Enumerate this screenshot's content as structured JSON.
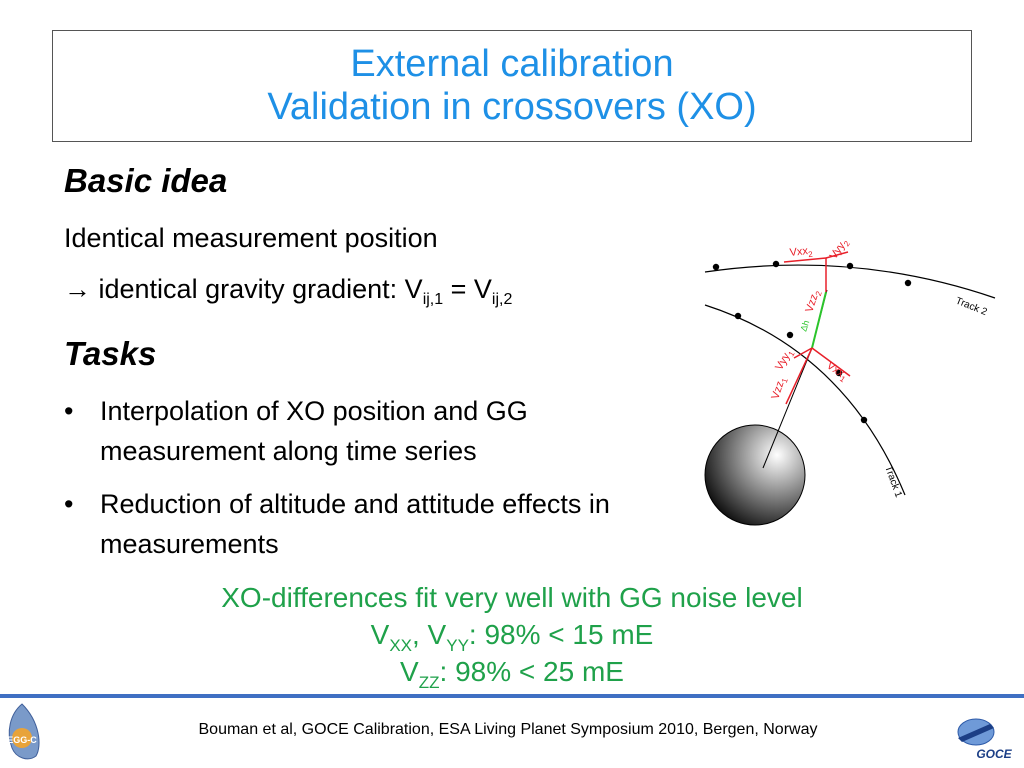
{
  "title": {
    "line1": "External calibration",
    "line2": "Validation in crossovers (XO)"
  },
  "basic": {
    "heading": "Basic idea",
    "line1": "Identical measurement position",
    "line2_prefix": "→ identical gravity gradient: V",
    "sub1": "ij,1",
    "eq": " = V",
    "sub2": "ij,2"
  },
  "tasks": {
    "heading": "Tasks",
    "bullet_char": "•",
    "items": [
      "Interpolation of XO position and GG measurement along time series",
      "Reduction of altitude and attitude effects in  measurements"
    ]
  },
  "result": {
    "line1": "XO-differences fit very well with GG noise level",
    "l2_v1": "V",
    "l2_sub1": "XX",
    "l2_mid": ", V",
    "l2_sub2": "YY",
    "l2_tail": ": 98% < 15 mE",
    "l3_v": "V",
    "l3_sub": "ZZ",
    "l3_tail": ": 98% < 25 mE"
  },
  "diagram": {
    "track1": "Track 1",
    "track2": "Track 2",
    "vxx2": "Vxx",
    "vxx2_sub": "2",
    "vyy2": "Vyy",
    "vyy2_sub": "2",
    "vzz2": "Vzz",
    "vzz2_sub": "2",
    "dh": "Δh",
    "vyy1": "Vyy",
    "vyy1_sub": "1",
    "vzz1": "Vzz",
    "vzz1_sub": "1",
    "vxx1": "Vxx",
    "vxx1_sub": "1"
  },
  "footer": {
    "citation": "Bouman et al, GOCE Calibration, ESA Living Planet Symposium 2010, Bergen, Norway",
    "logo_left": "EGG-C",
    "logo_right": "GOCE"
  },
  "colors": {
    "title": "#1e90e6",
    "result": "#1fa14a",
    "footer_line": "#3f6fc3",
    "vector_red": "#e8202a",
    "delta_green": "#2bc42b"
  }
}
